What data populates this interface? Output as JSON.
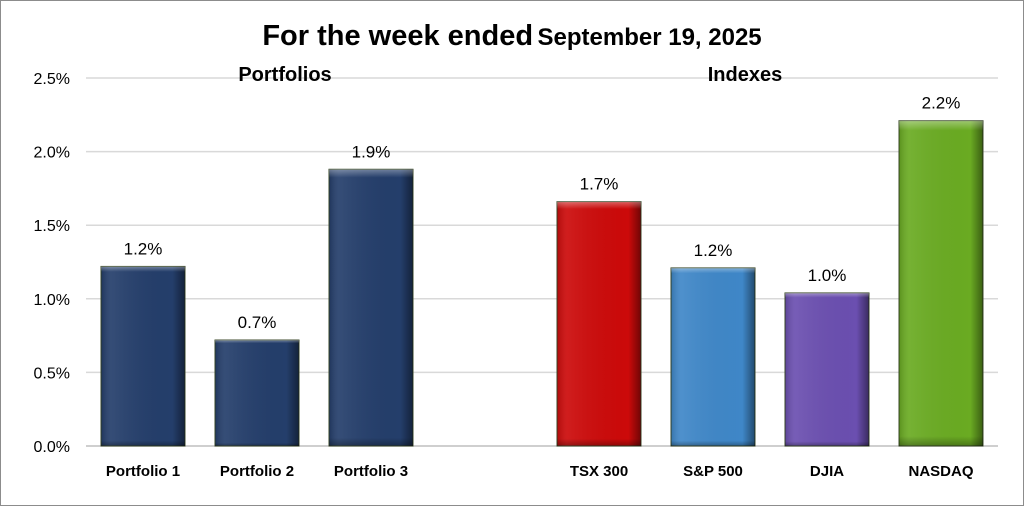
{
  "chart_data": {
    "type": "bar",
    "title_main": "For the week ended",
    "title_date": "September 19, 2025",
    "group_labels": [
      "Portfolios",
      "Indexes"
    ],
    "categories": [
      "Portfolio 1",
      "Portfolio 2",
      "Portfolio 3",
      "",
      "TSX 300",
      "S&P 500",
      "DJIA",
      "NASDAQ"
    ],
    "values": [
      1.22,
      0.72,
      1.88,
      null,
      1.66,
      1.21,
      1.04,
      2.21
    ],
    "data_labels": [
      "1.2%",
      "0.7%",
      "1.9%",
      "",
      "1.7%",
      "1.2%",
      "1.0%",
      "2.2%"
    ],
    "colors": [
      "#243e6b",
      "#243e6b",
      "#243e6b",
      "",
      "#cc0a0a",
      "#3f87c8",
      "#6b4fb0",
      "#6aab22"
    ],
    "yticks": [
      "0.0%",
      "0.5%",
      "1.0%",
      "1.5%",
      "2.0%",
      "2.5%"
    ],
    "ylim": [
      0,
      2.5
    ],
    "grid": true,
    "legend": "none"
  }
}
